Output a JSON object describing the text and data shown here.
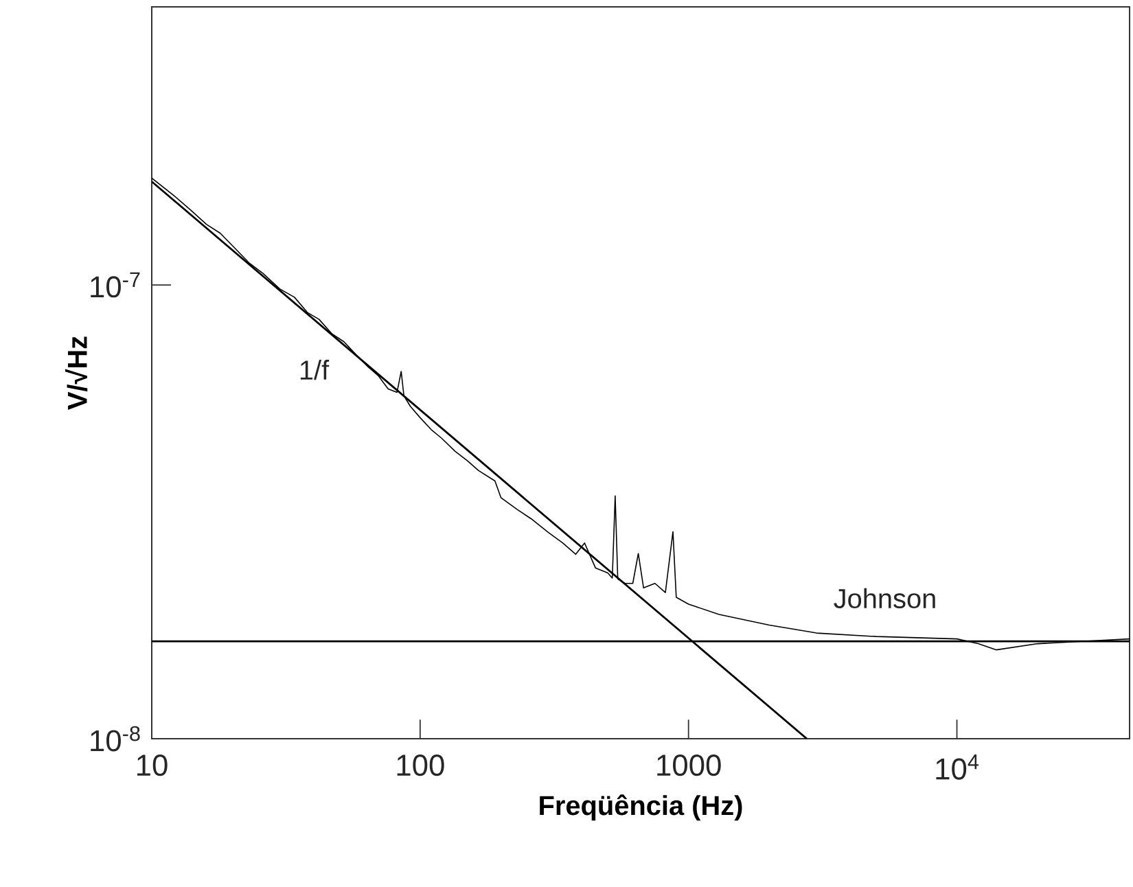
{
  "chart_data": {
    "type": "line",
    "xlabel": "Freqüência (Hz)",
    "ylabel": "V/√Hz",
    "log": "xy",
    "grid": false,
    "xlim": [
      10,
      44000
    ],
    "ylim": [
      1e-08,
      4.1e-07
    ],
    "xticks": [
      10,
      100,
      1000,
      {
        "value": 10000,
        "label": "10$^{4}$"
      }
    ],
    "yticks": [
      {
        "value": 1e-08,
        "label": "10$^{-8}$"
      },
      {
        "value": 1e-07,
        "label": "10$^{-7}$"
      }
    ],
    "series": [
      {
        "x": [
          10,
          12,
          14,
          16,
          18,
          20,
          23,
          26,
          30,
          34,
          38,
          42,
          47,
          52,
          58,
          64,
          70,
          76,
          82,
          85,
          87,
          92,
          100,
          110,
          120,
          135,
          150,
          165,
          190,
          200,
          230,
          260,
          300,
          340,
          380,
          410,
          450,
          500,
          520,
          533,
          545,
          580,
          620,
          650,
          680,
          750,
          820,
          875,
          900,
          1000,
          1300,
          2000,
          3000,
          5000,
          10000,
          12000,
          14000,
          20000,
          30000,
          44000
        ],
        "values": [
          1.72e-07,
          1.58e-07,
          1.46e-07,
          1.36e-07,
          1.3e-07,
          1.22e-07,
          1.12e-07,
          1.06e-07,
          9.8e-08,
          9.4e-08,
          8.7e-08,
          8.4e-08,
          7.8e-08,
          7.5e-08,
          7e-08,
          6.6e-08,
          6.3e-08,
          5.9e-08,
          5.8e-08,
          6.45e-08,
          5.7e-08,
          5.4e-08,
          5.1e-08,
          4.8e-08,
          4.6e-08,
          4.3e-08,
          4.1e-08,
          3.9e-08,
          3.7e-08,
          3.4e-08,
          3.2e-08,
          3.05e-08,
          2.85e-08,
          2.7e-08,
          2.55e-08,
          2.7e-08,
          2.38e-08,
          2.32e-08,
          2.26e-08,
          3.43e-08,
          2.25e-08,
          2.2e-08,
          2.2e-08,
          2.56e-08,
          2.15e-08,
          2.2e-08,
          2.1e-08,
          2.86e-08,
          2.05e-08,
          1.98e-08,
          1.88e-08,
          1.78e-08,
          1.71e-08,
          1.68e-08,
          1.66e-08,
          1.62e-08,
          1.57e-08,
          1.62e-08,
          1.64e-08,
          1.66e-08
        ]
      },
      {
        "name": "1/f",
        "x": [
          10,
          2760
        ],
        "values": [
          1.69e-07,
          1e-08
        ]
      }
    ],
    "ref_lines": [
      {
        "axis": "y",
        "value": 1.64e-08,
        "label": "Johnson"
      }
    ]
  }
}
